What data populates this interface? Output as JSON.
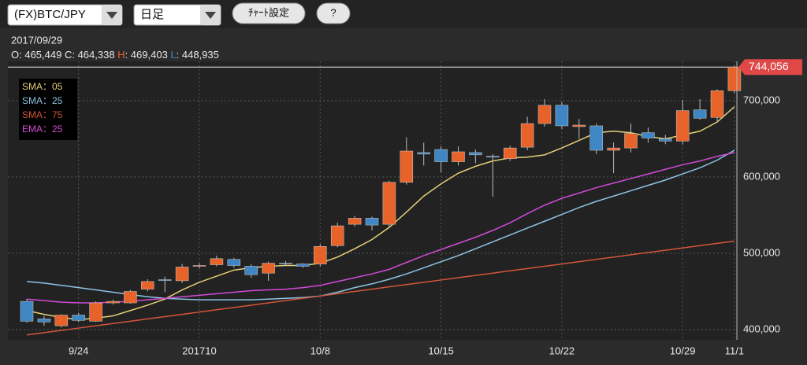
{
  "ui": {
    "symbol": "(FX)BTC/JPY",
    "period": "日足",
    "settings_button": "ﾁｬｰﾄ設定",
    "help_button": "?"
  },
  "chart_data": {
    "type": "candlestick",
    "header": {
      "date": "2017/09/29",
      "open": "O: 465,449",
      "close": "C: 464,338",
      "high_key": "H",
      "high": ": 469,403",
      "low_key": "L",
      "low": ": 448,935"
    },
    "categories": [
      null,
      null,
      null,
      "9/24",
      null,
      null,
      null,
      null,
      null,
      null,
      "201710",
      null,
      null,
      null,
      null,
      null,
      null,
      "10/8",
      null,
      null,
      null,
      null,
      null,
      null,
      "10/15",
      null,
      null,
      null,
      null,
      null,
      null,
      "10/22",
      null,
      null,
      null,
      null,
      null,
      null,
      "10/29",
      null,
      null,
      "11/1"
    ],
    "open": [
      437000,
      414000,
      405000,
      419000,
      411000,
      435000,
      435000,
      453000,
      465449,
      464000,
      483000,
      485000,
      492000,
      483000,
      474000,
      487000,
      486000,
      486000,
      510000,
      538000,
      546000,
      538000,
      593000,
      632000,
      636000,
      620000,
      632000,
      627000,
      624000,
      639000,
      670000,
      694000,
      666000,
      667000,
      635000,
      638000,
      658000,
      650000,
      647000,
      688000,
      678000,
      713000
    ],
    "high": [
      440000,
      418000,
      420000,
      422000,
      437000,
      439000,
      452000,
      466000,
      469403,
      486000,
      487000,
      497000,
      494000,
      486000,
      489000,
      490000,
      487000,
      512000,
      540000,
      549000,
      548000,
      595000,
      652000,
      645000,
      640000,
      640000,
      636000,
      630000,
      641000,
      679000,
      702000,
      698000,
      676000,
      670000,
      645000,
      670000,
      665000,
      655000,
      701000,
      702000,
      715000,
      746000
    ],
    "low": [
      409000,
      405000,
      403000,
      410000,
      410000,
      433000,
      434000,
      450000,
      448935,
      461000,
      480000,
      483000,
      481000,
      468000,
      464000,
      484000,
      481000,
      483000,
      508000,
      535000,
      530000,
      535000,
      590000,
      615000,
      606000,
      615000,
      618000,
      574000,
      621000,
      635000,
      666000,
      663000,
      650000,
      630000,
      605000,
      632000,
      645000,
      643000,
      643000,
      675000,
      672000,
      710000
    ],
    "close": [
      411000,
      410000,
      419000,
      412000,
      435000,
      437000,
      450000,
      463000,
      464338,
      482000,
      484000,
      493000,
      484000,
      472000,
      487000,
      486000,
      483000,
      509000,
      536000,
      546000,
      537000,
      593000,
      634000,
      630000,
      620000,
      633000,
      629000,
      626000,
      638000,
      670000,
      694000,
      667000,
      668000,
      635000,
      638000,
      657000,
      651000,
      647000,
      687000,
      677000,
      713000,
      744056
    ],
    "up_color": "#e8632a",
    "down_color": "#3f86c4",
    "series": [
      {
        "name": "SMA：05",
        "color": "#e3cf78",
        "values": [
          425000,
          420000,
          416000,
          413000,
          415000,
          418000,
          425000,
          432000,
          440000,
          452000,
          462000,
          470000,
          478000,
          481000,
          483000,
          484000,
          484000,
          487000,
          495000,
          506000,
          518000,
          534000,
          554000,
          575000,
          591000,
          605000,
          614000,
          621000,
          625000,
          626000,
          629000,
          638000,
          648000,
          658000,
          660000,
          658000,
          653000,
          650000,
          655000,
          660000,
          672000,
          692000
        ]
      },
      {
        "name": "SMA：25",
        "color": "#8ec3e6",
        "values": [
          463000,
          461000,
          458000,
          455000,
          452000,
          449000,
          446000,
          443000,
          441000,
          440000,
          439000,
          439000,
          439000,
          439000,
          440000,
          441000,
          442000,
          444000,
          449000,
          455000,
          460000,
          466000,
          473000,
          481000,
          489000,
          497000,
          506000,
          515000,
          524000,
          533000,
          542000,
          551000,
          560000,
          568000,
          575000,
          582000,
          589000,
          596000,
          604000,
          612000,
          622000,
          635000
        ]
      },
      {
        "name": "SMA：75",
        "color": "#d4553a",
        "values": [
          393000,
          396000,
          399000,
          402000,
          405000,
          408000,
          411000,
          414000,
          417000,
          420000,
          423000,
          426000,
          429000,
          432000,
          435000,
          438000,
          441000,
          444000,
          447000,
          450000,
          453000,
          456000,
          459000,
          462000,
          465000,
          468000,
          471000,
          474000,
          477000,
          480000,
          483000,
          486000,
          489000,
          492000,
          495000,
          498000,
          501000,
          504000,
          507000,
          510000,
          513000,
          516000
        ]
      },
      {
        "name": "EMA：25",
        "color": "#d24ad8",
        "values": [
          440000,
          438000,
          436000,
          435000,
          435000,
          436000,
          437000,
          439000,
          441000,
          443000,
          445000,
          447000,
          449000,
          451000,
          452000,
          453000,
          455000,
          458000,
          463000,
          468000,
          473000,
          479000,
          488000,
          497000,
          505000,
          513000,
          521000,
          530000,
          540000,
          552000,
          563000,
          572000,
          579000,
          586000,
          592000,
          598000,
          604000,
          610000,
          616000,
          621000,
          627000,
          632000
        ]
      }
    ],
    "last_price": {
      "value": 744056,
      "label": "744,056"
    },
    "ylim": [
      386600,
      751500
    ],
    "yticks": [
      {
        "value": 400000,
        "label": "400,000"
      },
      {
        "value": 500000,
        "label": "500,000"
      },
      {
        "value": 600000,
        "label": "600,000"
      },
      {
        "value": 700000,
        "label": "700,000"
      }
    ],
    "grid": true
  }
}
